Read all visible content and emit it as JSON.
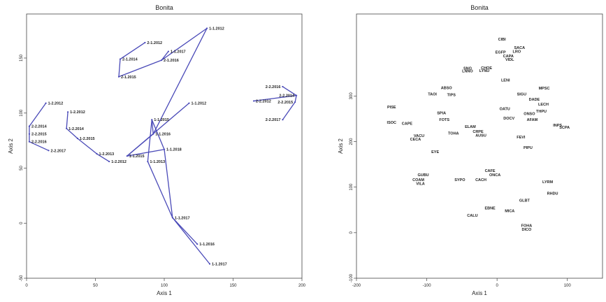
{
  "chart_data": [
    {
      "type": "line",
      "title": "Bonita",
      "xlabel": "Axis 1",
      "ylabel": "Axis 2",
      "xlim": [
        0,
        200
      ],
      "ylim": [
        -50,
        190
      ],
      "xticks": [
        0,
        50,
        100,
        150,
        200
      ],
      "xtick_labels": [
        "0",
        "50",
        "100",
        "150",
        "200"
      ],
      "yticks": [
        -50,
        0,
        50,
        100,
        150
      ],
      "ytick_labels": [
        "-50",
        "0",
        "50",
        "100",
        "150"
      ],
      "grid": false,
      "line_color": "#4a4ab8",
      "points": [
        {
          "id": "p01",
          "label": "1-1.2012",
          "x": 131,
          "y": 177
        },
        {
          "id": "p02",
          "label": "1-1.2017",
          "x": 103,
          "y": 156
        },
        {
          "id": "p03",
          "label": "2-1.2012",
          "x": 86,
          "y": 164
        },
        {
          "id": "p04",
          "label": "2-1.2014",
          "x": 68,
          "y": 149
        },
        {
          "id": "p05",
          "label": "2-1.2016",
          "x": 98,
          "y": 148
        },
        {
          "id": "p06",
          "label": "2-1.2015",
          "x": 67,
          "y": 133
        },
        {
          "id": "p07",
          "label": "2-2.2016",
          "x": 186,
          "y": 124
        },
        {
          "id": "p08",
          "label": "2-2.2012",
          "x": 165,
          "y": 111
        },
        {
          "id": "p09",
          "label": "2-2.2014",
          "x": 196,
          "y": 116
        },
        {
          "id": "p10",
          "label": "2-2.2015",
          "x": 195,
          "y": 110
        },
        {
          "id": "p11",
          "label": "2-2.2017",
          "x": 186,
          "y": 94
        },
        {
          "id": "p12",
          "label": "1-2.2012",
          "x": 14,
          "y": 109
        },
        {
          "id": "p13",
          "label": "1-2.2012",
          "x": 30,
          "y": 101
        },
        {
          "id": "p14",
          "label": "1-2.2014",
          "x": 29,
          "y": 86
        },
        {
          "id": "p15",
          "label": "1-2.2015",
          "x": 37,
          "y": 77
        },
        {
          "id": "p16",
          "label": "1-2.2013",
          "x": 51,
          "y": 63
        },
        {
          "id": "p17",
          "label": "1-2.2012",
          "x": 60,
          "y": 56
        },
        {
          "id": "p18",
          "label": "2-2.2014",
          "x": 2,
          "y": 88
        },
        {
          "id": "p19",
          "label": "2-2.2015",
          "x": 2,
          "y": 81
        },
        {
          "id": "p20",
          "label": "2-2.2016",
          "x": 2,
          "y": 74
        },
        {
          "id": "p21",
          "label": "2-2.2017",
          "x": 16,
          "y": 66
        },
        {
          "id": "p22",
          "label": "1-1.2012",
          "x": 118,
          "y": 109
        },
        {
          "id": "p23",
          "label": "1-1.2015",
          "x": 91,
          "y": 94
        },
        {
          "id": "p24",
          "label": "1-1.2016",
          "x": 92,
          "y": 81
        },
        {
          "id": "p25",
          "label": "1-1.2018",
          "x": 100,
          "y": 67
        },
        {
          "id": "p26",
          "label": "1-1.2015",
          "x": 73,
          "y": 61
        },
        {
          "id": "p27",
          "label": "1-1.2013",
          "x": 88,
          "y": 56
        },
        {
          "id": "p28",
          "label": "1-1.2017",
          "x": 106,
          "y": 5
        },
        {
          "id": "p29",
          "label": "1-1.2016",
          "x": 124,
          "y": -19
        },
        {
          "id": "p30",
          "label": "1-1.2017",
          "x": 133,
          "y": -37
        }
      ],
      "segments": [
        [
          "p03",
          "p04"
        ],
        [
          "p04",
          "p06"
        ],
        [
          "p06",
          "p05"
        ],
        [
          "p05",
          "p02"
        ],
        [
          "p05",
          "p01"
        ],
        [
          "p01",
          "p24"
        ],
        [
          "p24",
          "p23"
        ],
        [
          "p23",
          "p27"
        ],
        [
          "p24",
          "p26"
        ],
        [
          "p26",
          "p25"
        ],
        [
          "p25",
          "p28"
        ],
        [
          "p28",
          "p27"
        ],
        [
          "p22",
          "p26"
        ],
        [
          "p25",
          "p23"
        ],
        [
          "p28",
          "p30"
        ],
        [
          "p28",
          "p29"
        ],
        [
          "p12",
          "p18"
        ],
        [
          "p18",
          "p19"
        ],
        [
          "p19",
          "p20"
        ],
        [
          "p20",
          "p21"
        ],
        [
          "p13",
          "p14"
        ],
        [
          "p14",
          "p15"
        ],
        [
          "p15",
          "p16"
        ],
        [
          "p16",
          "p17"
        ],
        [
          "p08",
          "p09"
        ],
        [
          "p09",
          "p07"
        ],
        [
          "p09",
          "p10"
        ],
        [
          "p10",
          "p11"
        ]
      ]
    },
    {
      "type": "scatter",
      "title": "Bonita",
      "xlabel": "Axis 1",
      "ylabel": "Axis 2",
      "xlim": [
        -200,
        150
      ],
      "ylim": [
        -100,
        480
      ],
      "xticks": [
        -200,
        -100,
        0,
        100
      ],
      "xtick_labels": [
        "-200",
        "-100",
        "0",
        "100"
      ],
      "yticks": [
        -100,
        0,
        100,
        200,
        300
      ],
      "ytick_labels": [
        "-100",
        "0",
        "100",
        "200",
        "300"
      ],
      "grid": false,
      "points": [
        {
          "label": "CIBI",
          "x": 7,
          "y": 422
        },
        {
          "label": "SACA",
          "x": 32,
          "y": 403
        },
        {
          "label": "LRO",
          "x": 28,
          "y": 395
        },
        {
          "label": "EGFP",
          "x": 5,
          "y": 393
        },
        {
          "label": "CAPA",
          "x": 16,
          "y": 385
        },
        {
          "label": "VIDL",
          "x": 18,
          "y": 377
        },
        {
          "label": "CHOE",
          "x": -15,
          "y": 359
        },
        {
          "label": "SNO",
          "x": -42,
          "y": 358
        },
        {
          "label": "LNNO",
          "x": -42,
          "y": 352
        },
        {
          "label": "LYNU",
          "x": -18,
          "y": 353
        },
        {
          "label": "LENI",
          "x": 12,
          "y": 332
        },
        {
          "label": "MPSC",
          "x": 67,
          "y": 314
        },
        {
          "label": "SIGU",
          "x": 35,
          "y": 301
        },
        {
          "label": "ABSO",
          "x": -72,
          "y": 315
        },
        {
          "label": "TAOI",
          "x": -92,
          "y": 301
        },
        {
          "label": "TIPS",
          "x": -65,
          "y": 300
        },
        {
          "label": "DADE",
          "x": 53,
          "y": 290
        },
        {
          "label": "LECH",
          "x": 66,
          "y": 279
        },
        {
          "label": "PISE",
          "x": -150,
          "y": 273
        },
        {
          "label": "OATU",
          "x": 11,
          "y": 269
        },
        {
          "label": "THPU",
          "x": 63,
          "y": 264
        },
        {
          "label": "ONSO",
          "x": 46,
          "y": 258
        },
        {
          "label": "SPIA",
          "x": -79,
          "y": 260
        },
        {
          "label": "DOCV",
          "x": 17,
          "y": 248
        },
        {
          "label": "AFAM",
          "x": 50,
          "y": 245
        },
        {
          "label": "FOTS",
          "x": -75,
          "y": 245
        },
        {
          "label": "ISOC",
          "x": -150,
          "y": 239
        },
        {
          "label": "CAPE",
          "x": -128,
          "y": 237
        },
        {
          "label": "INPS",
          "x": 86,
          "y": 233
        },
        {
          "label": "SCPA",
          "x": 96,
          "y": 228
        },
        {
          "label": "ELAM",
          "x": -38,
          "y": 230
        },
        {
          "label": "CRPE",
          "x": -27,
          "y": 219
        },
        {
          "label": "TOHA",
          "x": -62,
          "y": 215
        },
        {
          "label": "AUSU",
          "x": -23,
          "y": 211
        },
        {
          "label": "VACU",
          "x": -111,
          "y": 210
        },
        {
          "label": "CECA",
          "x": -116,
          "y": 202
        },
        {
          "label": "FEVI",
          "x": 34,
          "y": 207
        },
        {
          "label": "PIPU",
          "x": 44,
          "y": 184
        },
        {
          "label": "EYE",
          "x": -88,
          "y": 175
        },
        {
          "label": "CAFE",
          "x": -10,
          "y": 133
        },
        {
          "label": "ONCA",
          "x": -3,
          "y": 124
        },
        {
          "label": "GUBU",
          "x": -105,
          "y": 124
        },
        {
          "label": "SYPO",
          "x": -53,
          "y": 113
        },
        {
          "label": "CACH",
          "x": -23,
          "y": 113
        },
        {
          "label": "COAM",
          "x": -112,
          "y": 113
        },
        {
          "label": "VILA",
          "x": -109,
          "y": 105
        },
        {
          "label": "LYRM",
          "x": 72,
          "y": 109
        },
        {
          "label": "RHDU",
          "x": 79,
          "y": 83
        },
        {
          "label": "GLBT",
          "x": 39,
          "y": 68
        },
        {
          "label": "EBNE",
          "x": -10,
          "y": 51
        },
        {
          "label": "MICA",
          "x": 18,
          "y": 45
        },
        {
          "label": "CALU",
          "x": -35,
          "y": 35
        },
        {
          "label": "FOHA",
          "x": 42,
          "y": 13
        },
        {
          "label": "DICO",
          "x": 42,
          "y": 4
        }
      ]
    }
  ]
}
